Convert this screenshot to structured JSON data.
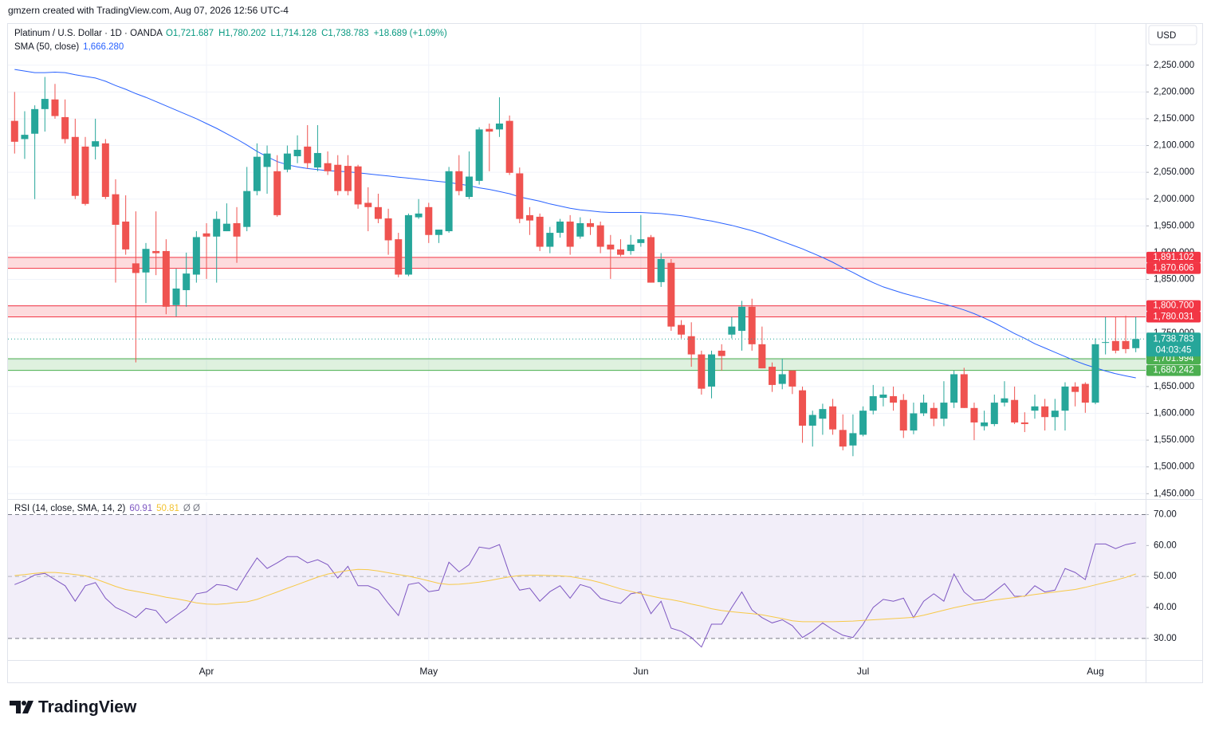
{
  "header": {
    "credit": "gmzern created with TradingView.com, Aug 07, 2026 12:56 UTC-4"
  },
  "footer": {
    "brand": "TradingView"
  },
  "chart_data": [
    {
      "type": "candlestick",
      "title": "Platinum / U.S. Dollar · 1D · OANDA",
      "legend": [
        "O1,721.687",
        "H1,780.202",
        "L1,714.128",
        "C1,738.783",
        "+18.689 (+1.09%)"
      ],
      "currency": "USD",
      "categories": [
        null,
        null,
        null,
        null,
        null,
        null,
        null,
        null,
        null,
        null,
        null,
        null,
        null,
        null,
        null,
        null,
        null,
        null,
        null,
        "Apr",
        null,
        null,
        null,
        null,
        null,
        null,
        null,
        null,
        null,
        null,
        null,
        null,
        null,
        null,
        null,
        null,
        null,
        null,
        null,
        null,
        null,
        "May",
        null,
        null,
        null,
        null,
        null,
        null,
        null,
        null,
        null,
        null,
        null,
        null,
        null,
        null,
        null,
        null,
        null,
        null,
        null,
        null,
        "Jun",
        null,
        null,
        null,
        null,
        null,
        null,
        null,
        null,
        null,
        null,
        null,
        null,
        null,
        null,
        null,
        null,
        null,
        null,
        null,
        null,
        null,
        "Jul",
        null,
        null,
        null,
        null,
        null,
        null,
        null,
        null,
        null,
        null,
        null,
        null,
        null,
        null,
        null,
        null,
        null,
        null,
        null,
        null,
        null,
        null,
        "Aug",
        null,
        null,
        null,
        null
      ],
      "open": [
        2146,
        2112,
        2122,
        2168,
        2186,
        2153,
        2116,
        2098,
        2098,
        2104,
        2009,
        1958,
        1880,
        1863,
        1903,
        1903,
        1802,
        1830,
        1859,
        1936,
        1930,
        1940,
        1955,
        1948,
        2015,
        2060,
        2052,
        2055,
        2080,
        2098,
        2059,
        2067,
        2064,
        2062,
        2061,
        1993,
        1985,
        1964,
        1925,
        1859,
        1966,
        1985,
        1933,
        1940,
        2052,
        2004,
        2034,
        2131,
        2130,
        2146,
        2048,
        1970,
        1967,
        1911,
        1937,
        1958,
        1930,
        1955,
        1951,
        1915,
        1906,
        1903,
        1918,
        1929,
        1845,
        1881,
        1765,
        1744,
        1710,
        1650,
        1717,
        1747,
        1754,
        1799,
        1729,
        1687,
        1655,
        1680,
        1643,
        1577,
        1590,
        1613,
        1569,
        1540,
        1560,
        1605,
        1629,
        1632,
        1625,
        1568,
        1600,
        1610,
        1590,
        1620,
        1673,
        1610,
        1576,
        1580,
        1620,
        1625,
        1583,
        1605,
        1613,
        1593,
        1605,
        1650,
        1655,
        1620,
        1732,
        1735,
        1735,
        1721.687
      ],
      "high": [
        2200,
        2164,
        2175,
        2228,
        2215,
        2186,
        2150,
        2116,
        2150,
        2112,
        2037,
        2007,
        1977,
        1918,
        1977,
        1925,
        1870,
        1900,
        1940,
        1955,
        1977,
        1992,
        1985,
        2060,
        2104,
        2100,
        2082,
        2100,
        2119,
        2138,
        2138,
        2089,
        2082,
        2082,
        2064,
        2022,
        2010,
        1982,
        1937,
        1973,
        2000,
        1993,
        1943,
        2060,
        2082,
        2089,
        2134,
        2141,
        2190,
        2156,
        2059,
        1985,
        1973,
        1948,
        1963,
        1970,
        1966,
        1963,
        1958,
        1933,
        1925,
        1933,
        1970,
        1933,
        1899,
        1888,
        1774,
        1770,
        1717,
        1717,
        1729,
        1780,
        1810,
        1814,
        1762,
        1695,
        1702,
        1680,
        1650,
        1605,
        1618,
        1627,
        1598,
        1598,
        1613,
        1653,
        1650,
        1650,
        1636,
        1620,
        1635,
        1620,
        1660,
        1680,
        1685,
        1620,
        1605,
        1635,
        1660,
        1650,
        1602,
        1635,
        1627,
        1627,
        1658,
        1658,
        1658,
        1740,
        1780,
        1780,
        1782,
        1780.202
      ],
      "low": [
        2085,
        2075,
        2000,
        2126,
        2150,
        2104,
        2000,
        1988,
        2074,
        2000,
        1844,
        1896,
        1695,
        1806,
        1858,
        1785,
        1781,
        1799,
        1844,
        1851,
        1844,
        1940,
        1881,
        1940,
        2007,
        2010,
        1967,
        2050,
        2067,
        2057,
        2052,
        2045,
        2007,
        2007,
        1982,
        1940,
        1955,
        1896,
        1854,
        1856,
        1963,
        1918,
        1918,
        1937,
        2007,
        2000,
        2027,
        2052,
        2116,
        2045,
        1955,
        1933,
        1903,
        1899,
        1928,
        1896,
        1926,
        1933,
        1899,
        1851,
        1893,
        1896,
        1911,
        1844,
        1836,
        1754,
        1740,
        1687,
        1635,
        1628,
        1680,
        1740,
        1717,
        1717,
        1684,
        1640,
        1645,
        1636,
        1545,
        1538,
        1560,
        1560,
        1531,
        1520,
        1557,
        1598,
        1613,
        1605,
        1554,
        1561,
        1595,
        1576,
        1576,
        1610,
        1610,
        1550,
        1568,
        1576,
        1613,
        1580,
        1565,
        1590,
        1568,
        1568,
        1568,
        1613,
        1601,
        1617,
        1710,
        1712,
        1712,
        1714.128
      ],
      "close": [
        2107,
        2120,
        2168,
        2187,
        2155,
        2112,
        2006,
        1991,
        2108,
        2004,
        1952,
        1906,
        1862,
        1907,
        1899,
        1799,
        1833,
        1861,
        1929,
        1930,
        1963,
        1954,
        1930,
        2015,
        2079,
        2085,
        1970,
        2085,
        2092,
        2067,
        2086,
        2052,
        2015,
        2015,
        1990,
        1985,
        1963,
        1923,
        1859,
        1970,
        1973,
        1933,
        1943,
        2052,
        2015,
        2042,
        2130,
        2126,
        2141,
        2049,
        1963,
        1960,
        1911,
        1937,
        1958,
        1911,
        1955,
        1948,
        1911,
        1906,
        1896,
        1915,
        1925,
        1844,
        1888,
        1762,
        1747,
        1710,
        1646,
        1710,
        1707,
        1762,
        1799,
        1729,
        1684,
        1653,
        1673,
        1650,
        1577,
        1597,
        1608,
        1570,
        1538,
        1563,
        1605,
        1632,
        1635,
        1620,
        1568,
        1600,
        1620,
        1590,
        1620,
        1673,
        1610,
        1583,
        1583,
        1620,
        1628,
        1583,
        1580,
        1613,
        1593,
        1605,
        1650,
        1640,
        1620,
        1729,
        1733,
        1717,
        1720,
        1738.783
      ],
      "up_color": "#26a69a",
      "down_color": "#ef5350",
      "last_value_label": "1,738.783",
      "countdown": "04:03:45",
      "ylim": [
        1446,
        2327
      ],
      "yticks": [
        {
          "value": 1450,
          "label": "1,450.000"
        },
        {
          "value": 1500,
          "label": "1,500.000"
        },
        {
          "value": 1550,
          "label": "1,550.000"
        },
        {
          "value": 1600,
          "label": "1,600.000"
        },
        {
          "value": 1650,
          "label": "1,650.000"
        },
        {
          "value": 1700,
          "label": "1,700.000"
        },
        {
          "value": 1750,
          "label": "1,750.000"
        },
        {
          "value": 1800,
          "label": "1,800.000"
        },
        {
          "value": 1850,
          "label": "1,850.000"
        },
        {
          "value": 1900,
          "label": "1,900.000"
        },
        {
          "value": 1950,
          "label": "1,950.000"
        },
        {
          "value": 2000,
          "label": "2,000.000"
        },
        {
          "value": 2050,
          "label": "2,050.000"
        },
        {
          "value": 2100,
          "label": "2,100.000"
        },
        {
          "value": 2150,
          "label": "2,150.000"
        },
        {
          "value": 2200,
          "label": "2,200.000"
        },
        {
          "value": 2250,
          "label": "2,250.000"
        }
      ],
      "grid": true,
      "overlay": {
        "title": "SMA (50, close)",
        "value_label": "1,666.280",
        "color": "#2962ff",
        "values": [
          2242,
          2239,
          2236,
          2236,
          2237,
          2236,
          2232,
          2229,
          2226,
          2220,
          2212,
          2205,
          2197,
          2190,
          2182,
          2174,
          2166,
          2158,
          2150,
          2141,
          2132,
          2122,
          2112,
          2101,
          2089,
          2079,
          2070,
          2064,
          2060,
          2057,
          2055,
          2053,
          2052,
          2051,
          2049,
          2047,
          2045,
          2043,
          2041,
          2039,
          2037,
          2035,
          2033,
          2031,
          2028,
          2025,
          2021,
          2018,
          2014,
          2010,
          2004,
          2000,
          1996,
          1991,
          1987,
          1983,
          1980,
          1978,
          1976,
          1975,
          1975,
          1975,
          1975,
          1974,
          1973,
          1971,
          1969,
          1966,
          1962,
          1959,
          1955,
          1951,
          1946,
          1941,
          1935,
          1928,
          1921,
          1914,
          1907,
          1899,
          1891,
          1882,
          1872,
          1863,
          1853,
          1844,
          1836,
          1830,
          1824,
          1819,
          1814,
          1809,
          1804,
          1799,
          1793,
          1786,
          1778,
          1769,
          1759,
          1749,
          1740,
          1730,
          1722,
          1714,
          1706,
          1698,
          1691,
          1685,
          1679,
          1674,
          1670,
          1666.28
        ]
      },
      "zones": [
        {
          "values": [
            1870.606,
            1891.102
          ],
          "value_labels": [
            "1,870.606",
            "1,891.102"
          ],
          "color": "#f23645"
        },
        {
          "values": [
            1780.031,
            1800.7
          ],
          "value_labels": [
            "1,780.031",
            "1,800.700"
          ],
          "color": "#f23645"
        },
        {
          "values": [
            1680.242,
            1701.994
          ],
          "value_labels": [
            "1,680.242",
            "1,701.994"
          ],
          "color": "#4caf50"
        }
      ]
    },
    {
      "type": "line",
      "title": "RSI (14, close, SMA, 14, 2)",
      "extra": "Ø Ø",
      "series": [
        {
          "color": "#7e57c2",
          "value_label": "60.91",
          "values": [
            47.4,
            48.7,
            50.5,
            51,
            49,
            47,
            42,
            47,
            48,
            43,
            40,
            38.5,
            36.7,
            39.7,
            39,
            35,
            37.4,
            39.7,
            44.4,
            45,
            47.4,
            47,
            45.6,
            51,
            56,
            52.6,
            54.4,
            56.4,
            56.4,
            54.4,
            55.4,
            53.8,
            49.5,
            53.3,
            47,
            47,
            45.6,
            41.3,
            37.4,
            47.4,
            48,
            45.1,
            45.6,
            54.6,
            51.5,
            53.8,
            59.5,
            59,
            60.3,
            50.8,
            45.6,
            46.2,
            42,
            45.1,
            47,
            43,
            47.4,
            46.4,
            43,
            42,
            41.3,
            44.4,
            45,
            38,
            42,
            33.3,
            32.3,
            30.3,
            27.2,
            34.6,
            34.6,
            40,
            45,
            39.2,
            36.7,
            35,
            36,
            34.1,
            30.3,
            32.3,
            35,
            32.8,
            31,
            30.3,
            34.6,
            40,
            42.6,
            42,
            43,
            36.7,
            42,
            44.4,
            42,
            50.8,
            45,
            42.3,
            42.6,
            45.1,
            47.7,
            43.6,
            43.6,
            47,
            45,
            45.6,
            52.6,
            51.3,
            49,
            60.5,
            60.5,
            59,
            60.3,
            60.91
          ]
        },
        {
          "color": "#f7c948",
          "value_label": "50.81",
          "values": [
            50.3,
            50.6,
            51,
            51.3,
            51.3,
            51,
            50.6,
            50.2,
            49.2,
            48,
            46.8,
            45.8,
            45.2,
            44.6,
            44,
            43.3,
            42.8,
            42.2,
            41.5,
            41.1,
            41,
            41.2,
            41.6,
            41.8,
            42.6,
            43.8,
            45,
            46.2,
            47.4,
            48.6,
            49.8,
            50.8,
            51.4,
            51.9,
            52.3,
            52.2,
            51.8,
            51.2,
            50.6,
            50.1,
            49.4,
            48.6,
            47.8,
            47.4,
            47.5,
            47.8,
            48.2,
            48.7,
            49.3,
            49.9,
            50.3,
            50.4,
            50.4,
            50.3,
            50.2,
            50,
            49.4,
            48.8,
            48,
            47,
            46,
            45.2,
            44.4,
            43.7,
            43,
            42.5,
            41.9,
            41.1,
            40.4,
            39.6,
            39,
            38.6,
            38.3,
            38,
            37.6,
            37,
            36.4,
            35.7,
            35.4,
            35.4,
            35.4,
            35.4,
            35.5,
            35.6,
            35.8,
            36,
            36.2,
            36.4,
            36.6,
            36.8,
            37.5,
            38.3,
            39.1,
            39.9,
            40.6,
            41.2,
            41.8,
            42.4,
            42.8,
            43.2,
            43.7,
            44.2,
            44.6,
            45,
            45.4,
            45.8,
            46.5,
            47.3,
            48.1,
            48.8,
            49.7,
            50.81
          ]
        }
      ],
      "band": [
        30,
        70
      ],
      "midline": 50,
      "band_color": "#7e57c2",
      "ylim": [
        23,
        74
      ],
      "yticks": [
        {
          "value": 30,
          "label": "30.00"
        },
        {
          "value": 40,
          "label": "40.00"
        },
        {
          "value": 50,
          "label": "50.00"
        },
        {
          "value": 60,
          "label": "60.00"
        },
        {
          "value": 70,
          "label": "70.00"
        }
      ]
    }
  ]
}
